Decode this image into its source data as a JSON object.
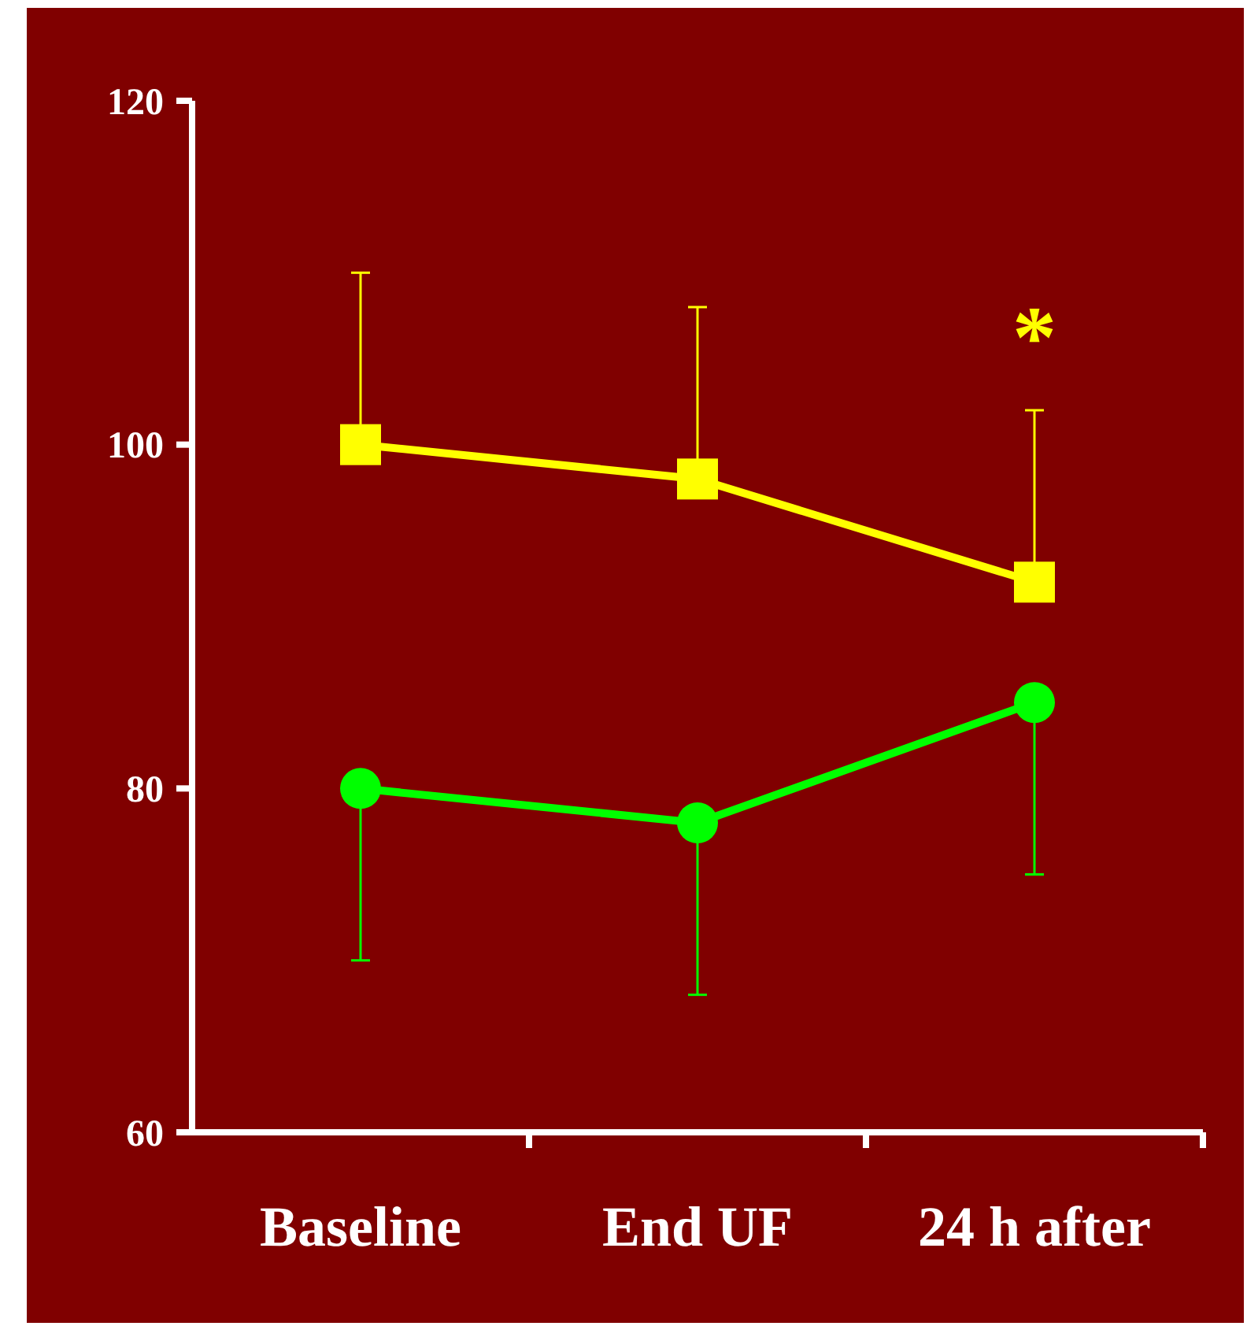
{
  "chart_data": {
    "type": "line",
    "categories": [
      "Baseline",
      "End UF",
      "24 h after"
    ],
    "series": [
      {
        "color": "#ffff00",
        "values": [
          100,
          98,
          92
        ],
        "marker": "square",
        "errors": [
          [
            100,
            110
          ],
          [
            98,
            108
          ],
          [
            92,
            102
          ]
        ]
      },
      {
        "color": "#00ff00",
        "values": [
          80,
          78,
          85
        ],
        "marker": "circle",
        "errors": [
          [
            70,
            80
          ],
          [
            68,
            78
          ],
          [
            75,
            85
          ]
        ]
      }
    ],
    "ylim": [
      60,
      120
    ],
    "yticks": [
      60,
      80,
      100,
      120
    ],
    "grid": false,
    "annotations": [
      "*"
    ]
  }
}
